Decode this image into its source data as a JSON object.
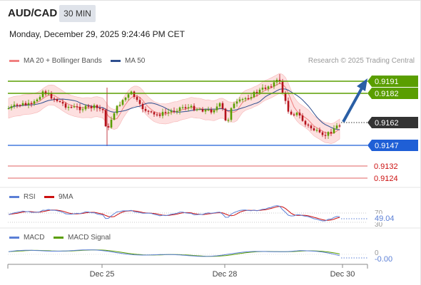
{
  "header": {
    "pair": "AUD/CAD",
    "timeframe": "30 MIN",
    "datetime": "Monday, December 29, 2025 9:24:46 PM CET"
  },
  "legend_main": [
    {
      "label": "MA 20 + Bollinger Bands",
      "color": "#f08080"
    },
    {
      "label": "MA 50",
      "color": "#2f4f8f"
    }
  ],
  "credit": "Research © 2025 Trading Central",
  "levels": {
    "r2": "0.9191",
    "r1": "0.9182",
    "last": "0.9162",
    "pivot": "0.9147",
    "s1": "0.9132",
    "s2": "0.9124"
  },
  "colors": {
    "resistance": "#5a9e00",
    "pivot": "#1f5fd6",
    "support": "#e06060",
    "last_price_bg": "#333333",
    "arrow": "#2a5fa5",
    "candle_up": "#5a9e00",
    "candle_down": "#b5121b",
    "band_fill": "#fde0e0"
  },
  "rsi_panel": {
    "legend": [
      {
        "label": "RSI",
        "color": "#5b7fd6"
      },
      {
        "label": "9MA",
        "color": "#cc1111"
      }
    ],
    "level_label": "70",
    "value_label": "49.04",
    "lower_label": "30"
  },
  "macd_panel": {
    "legend": [
      {
        "label": "MACD",
        "color": "#5b7fd6"
      },
      {
        "label": "MACD Signal",
        "color": "#5a9e00"
      }
    ],
    "zero_label": "0",
    "value_label": "-0.00"
  },
  "x_axis": {
    "labels": [
      "Dec 25",
      "Dec 28",
      "Dec 30"
    ]
  }
}
